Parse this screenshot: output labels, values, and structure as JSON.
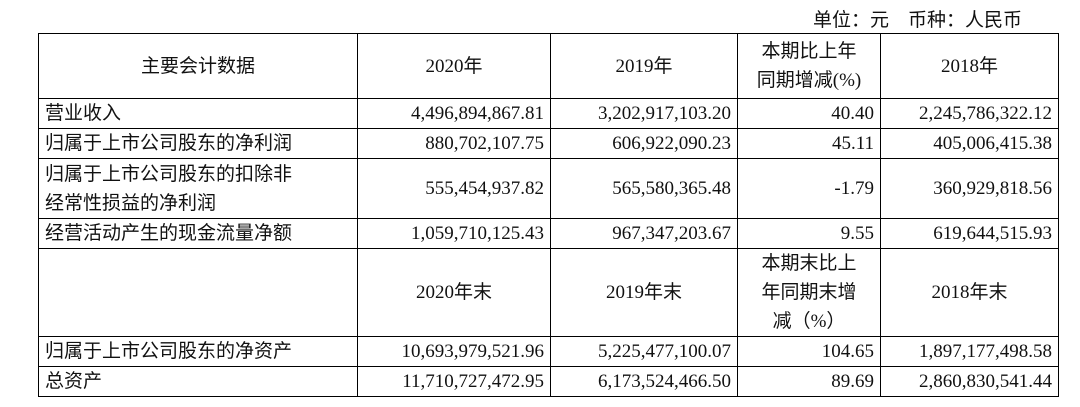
{
  "unit": "单位：元　币种：人民币",
  "table": {
    "header": [
      "主要会计数据",
      "2020年",
      "2019年",
      "本期比上年\n同期增减(%)",
      "2018年"
    ],
    "rows": [
      [
        "营业收入",
        "4,496,894,867.81",
        "3,202,917,103.20",
        "40.40",
        "2,245,786,322.12"
      ],
      [
        "归属于上市公司股东的净利润",
        "880,702,107.75",
        "606,922,090.23",
        "45.11",
        "405,006,415.38"
      ],
      [
        "归属于上市公司股东的扣除非\n经常性损益的净利润",
        "555,454,937.82",
        "565,580,365.48",
        "-1.79",
        "360,929,818.56"
      ],
      [
        "经营活动产生的现金流量净额",
        "1,059,710,125.43",
        "967,347,203.67",
        "9.55",
        "619,644,515.93"
      ]
    ],
    "header2": [
      "2020年末",
      "2019年末",
      "本期末比上\n年同期末增\n减（%）",
      "2018年末"
    ],
    "rows2": [
      [
        "归属于上市公司股东的净资产",
        "10,693,979,521.96",
        "5,225,477,100.07",
        "104.65",
        "1,897,177,498.58"
      ],
      [
        "总资产",
        "11,710,727,472.95",
        "6,173,524,466.50",
        "89.69",
        "2,860,830,541.44"
      ]
    ]
  }
}
